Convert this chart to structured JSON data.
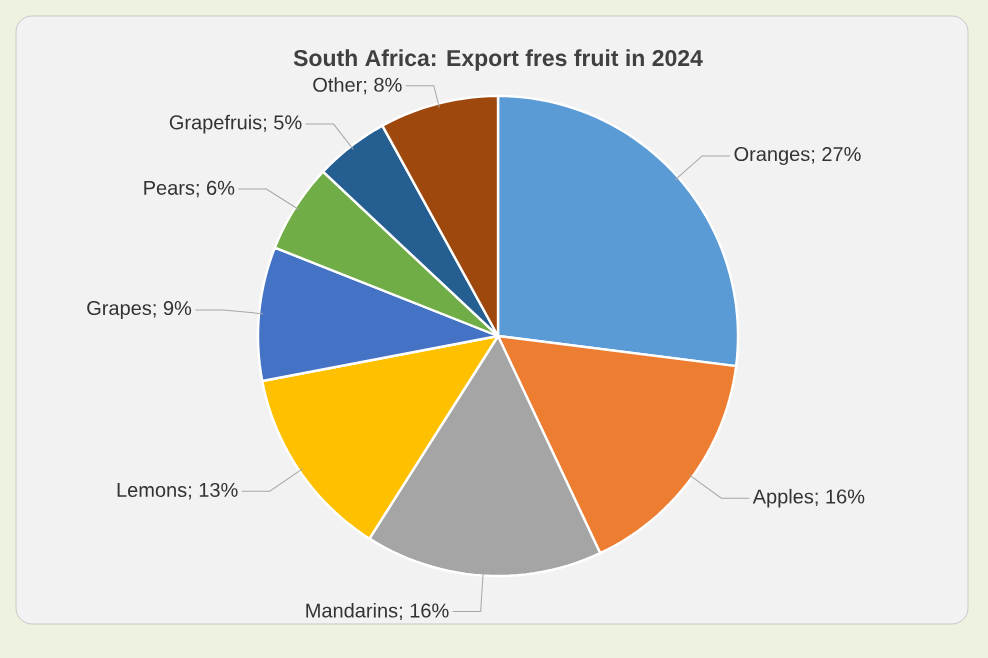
{
  "chart_data": {
    "type": "pie",
    "title": "South Africa: Export fres fruit in 2024",
    "categories": [
      "Oranges",
      "Apples",
      "Mandarins",
      "Lemons",
      "Grapes",
      "Pears",
      "Grapefruis",
      "Other"
    ],
    "values": [
      27,
      16,
      16,
      13,
      9,
      6,
      5,
      8
    ],
    "colors": [
      "#5b9bd5",
      "#ed7d31",
      "#a5a5a5",
      "#ffc000",
      "#4472c4",
      "#70ad47",
      "#255e91",
      "#9e480e"
    ],
    "value_labels": [
      "; 27%",
      "; 16%",
      "; 16%",
      "; 13%",
      "; 9%",
      "; 6%",
      "; 5%",
      "; 8%"
    ]
  }
}
